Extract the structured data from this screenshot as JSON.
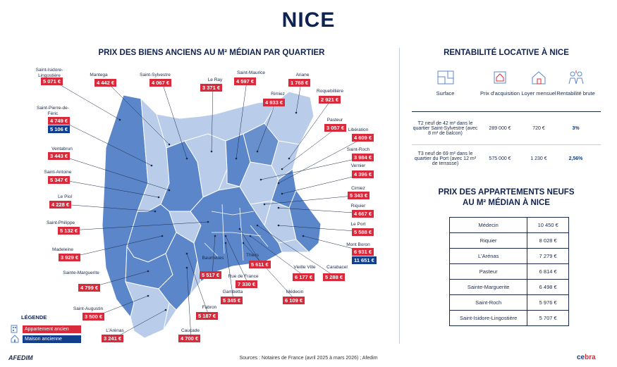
{
  "title": "NICE",
  "map_title": "PRIX DES BIENS ANCIENS AU M² MÉDIAN PAR QUARTIER",
  "colors": {
    "navy": "#10224f",
    "red": "#d82a3a",
    "blue": "#123f8c",
    "map_dark": "#5b86c9",
    "map_light": "#b9cdea"
  },
  "districts": [
    {
      "name": "Saint-Isidore-Lingostière",
      "apt": "5 071 €"
    },
    {
      "name": "Mantega",
      "apt": "4 442 €"
    },
    {
      "name": "Saint-Sylvestre",
      "apt": "4 067 €"
    },
    {
      "name": "Le Ray",
      "apt": "3 371 €"
    },
    {
      "name": "Saint-Maurice",
      "apt": "4 597 €"
    },
    {
      "name": "Ariane",
      "apt": "1 768 €"
    },
    {
      "name": "Rimiez",
      "apt": "4 933 €"
    },
    {
      "name": "Roquebillière",
      "apt": "2 921 €"
    },
    {
      "name": "Saint-Pierre-de-Féric",
      "apt": "4 749 €",
      "maison": "5 106 €"
    },
    {
      "name": "Pasteur",
      "apt": "3 057 €"
    },
    {
      "name": "Libération",
      "apt": "4 609 €"
    },
    {
      "name": "Ventabrun",
      "apt": "3 443 €"
    },
    {
      "name": "Saint-Roch",
      "apt": "3 984 €"
    },
    {
      "name": "Vernier",
      "apt": "4 396 €"
    },
    {
      "name": "Saint-Antoine",
      "apt": "5 347 €"
    },
    {
      "name": "Cimiez",
      "apt": "5 343 €"
    },
    {
      "name": "Le Piol",
      "apt": "4 228 €"
    },
    {
      "name": "Riquier",
      "apt": "4 667 €"
    },
    {
      "name": "Saint-Philippe",
      "apt": "5 132 €"
    },
    {
      "name": "Le Port",
      "apt": "5 588 €"
    },
    {
      "name": "Mont Boron",
      "apt": "6 931 €",
      "maison": "11 651 €"
    },
    {
      "name": "Madeleine",
      "apt": "3 929 €"
    },
    {
      "name": "Thiers",
      "apt": "5 611 €"
    },
    {
      "name": "Baumettes",
      "apt": "5 517 €"
    },
    {
      "name": "Vieille Ville",
      "apt": "6 177 €"
    },
    {
      "name": "Carabacel",
      "apt": "5 288 €"
    },
    {
      "name": "Sainte-Marguerite",
      "apt": "4 799 €"
    },
    {
      "name": "Rue de France",
      "apt": "7 330 €"
    },
    {
      "name": "Gambetta",
      "apt": "5 345 €"
    },
    {
      "name": "Médecin",
      "apt": "6 109 €"
    },
    {
      "name": "Saint-Augustin",
      "apt": "3 500 €"
    },
    {
      "name": "Fabron",
      "apt": "5 187 €"
    },
    {
      "name": "L'Arénas",
      "apt": "3 241 €"
    },
    {
      "name": "Caucade",
      "apt": "4 700 €"
    }
  ],
  "legend": {
    "title": "LÉGENDE",
    "apt": "Appartement ancien",
    "maison": "Maison ancienne"
  },
  "rent": {
    "title": "RENTABILITÉ LOCATIVE À NICE",
    "headers": [
      "Surface",
      "Prix d'acquisition",
      "Loyer mensuel",
      "Rentabilité brute"
    ],
    "rows": [
      {
        "surface": "T2 neuf de 42 m² dans le quartier Saint-Sylvestre (avec 8 m² de balcon)",
        "prix": "289 000 €",
        "loyer": "720 €",
        "renta": "3%"
      },
      {
        "surface": "T3 neuf de 69 m² dans le quartier du Port (avec 12 m² de terrasse)",
        "prix": "575 000 €",
        "loyer": "1 230 €",
        "renta": "2,56%"
      }
    ]
  },
  "neuf": {
    "title1": "PRIX DES APPARTEMENTS NEUFS",
    "title2": "AU M² MÉDIAN À NICE",
    "rows": [
      {
        "name": "Médecin",
        "value": "10 450 €"
      },
      {
        "name": "Riquier",
        "value": "8 028 €"
      },
      {
        "name": "L'Arénas",
        "value": "7 279 €"
      },
      {
        "name": "Pasteur",
        "value": "6 814 €"
      },
      {
        "name": "Sainte-Marguerite",
        "value": "6 498 €"
      },
      {
        "name": "Saint-Roch",
        "value": "5 976 €"
      },
      {
        "name": "Saint-Isidore-Lingostière",
        "value": "5 707 €"
      }
    ]
  },
  "footer": "Sources : Notaires de France (avril 2025 à mars 2026) ; Afedim",
  "logo_left": "AFEDIM",
  "logo_right_a": "ce",
  "logo_right_b": "bra"
}
